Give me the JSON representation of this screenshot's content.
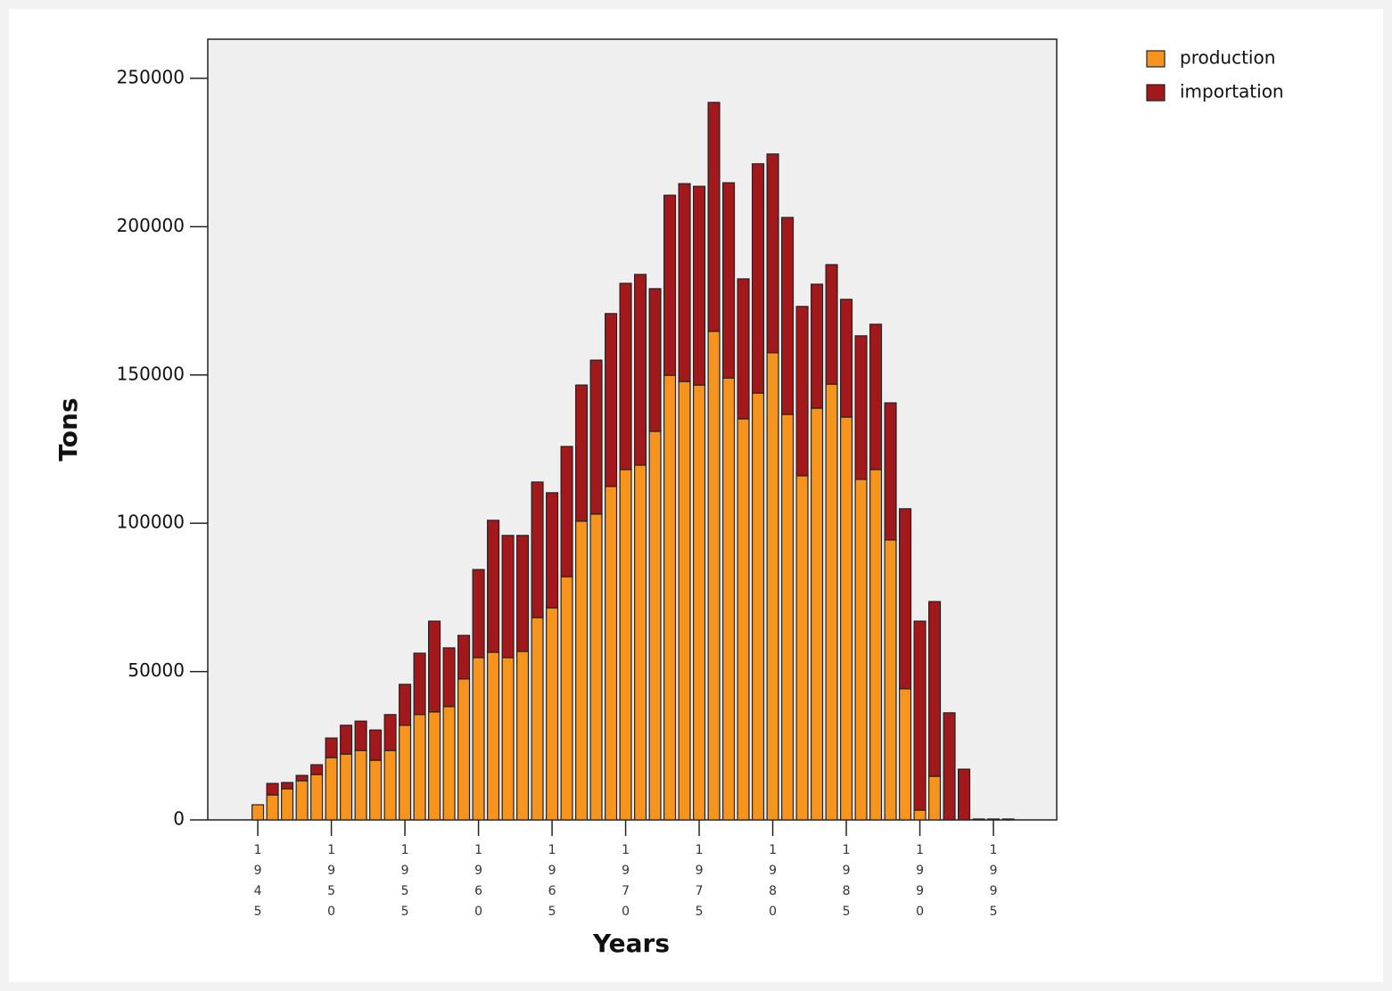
{
  "chart_data": {
    "type": "bar",
    "stacked": true,
    "x_label": "Years",
    "y_label": "Tons",
    "x": [
      1945,
      1946,
      1947,
      1948,
      1949,
      1950,
      1951,
      1952,
      1953,
      1954,
      1955,
      1956,
      1957,
      1958,
      1959,
      1960,
      1961,
      1962,
      1963,
      1964,
      1965,
      1966,
      1967,
      1968,
      1969,
      1970,
      1971,
      1972,
      1973,
      1974,
      1975,
      1976,
      1977,
      1978,
      1979,
      1980,
      1981,
      1982,
      1983,
      1984,
      1985,
      1986,
      1987,
      1988,
      1989,
      1990,
      1991,
      1992,
      1993,
      1994,
      1995,
      1996
    ],
    "series": [
      {
        "name": "production",
        "color": "#f7941d",
        "values": [
          5100,
          8400,
          10500,
          13200,
          15300,
          21000,
          22200,
          23400,
          20100,
          23400,
          31900,
          35500,
          36400,
          38200,
          47500,
          54700,
          56500,
          54700,
          56800,
          68200,
          71500,
          82000,
          100700,
          103100,
          112400,
          118100,
          119600,
          131000,
          149900,
          147800,
          146600,
          164700,
          149000,
          135200,
          143900,
          157500,
          136700,
          116000,
          138800,
          146900,
          135800,
          114800,
          118100,
          94400,
          44200,
          3300,
          14700,
          0,
          0,
          0,
          0,
          0
        ]
      },
      {
        "name": "importation",
        "color": "#a3181b",
        "values": [
          0,
          3900,
          2100,
          1800,
          3300,
          6600,
          9700,
          9900,
          10200,
          12100,
          13800,
          20700,
          30600,
          19800,
          14700,
          29700,
          44500,
          41200,
          39100,
          45700,
          38800,
          43900,
          45900,
          51900,
          58300,
          62800,
          64300,
          48100,
          60700,
          66700,
          67000,
          77200,
          65800,
          47200,
          77300,
          67000,
          66400,
          57100,
          41800,
          40300,
          39700,
          48400,
          49000,
          46200,
          60700,
          63700,
          58900,
          36100,
          17100,
          300,
          300,
          300
        ]
      }
    ],
    "xlim": [
      1941.6,
      1999.3
    ],
    "xticks": [
      1945,
      1950,
      1955,
      1960,
      1965,
      1970,
      1975,
      1980,
      1985,
      1990,
      1995
    ],
    "ylim": [
      0,
      263200
    ],
    "yticks": [
      0,
      50000,
      100000,
      150000,
      200000,
      250000
    ],
    "legend": "top-right"
  }
}
